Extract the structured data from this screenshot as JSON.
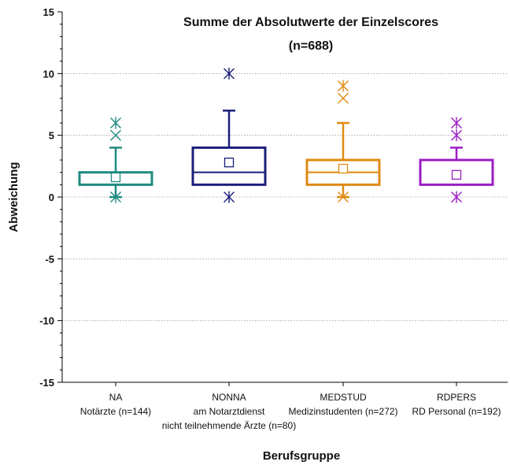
{
  "chart_data": {
    "type": "boxplot",
    "title": "Summe der Absolutwerte der Einzelscores",
    "subtitle": "(n=688)",
    "xlabel": "Berufsgruppe",
    "ylabel": "Abweichung",
    "ylim": [
      -15,
      15
    ],
    "yticks": [
      "-15",
      "-10",
      "-5",
      "0",
      "5",
      "10",
      "15"
    ],
    "grid": "horizontal-dotted",
    "groups": [
      {
        "code": "NA",
        "labels": [
          "NA",
          "Notärzte (n=144)"
        ],
        "color": "#1f8a80",
        "whisker_low": 0,
        "q1": 1,
        "median": 1,
        "q3": 2,
        "whisker_high": 4,
        "mean": 1.6,
        "outliers": [
          {
            "v": 5,
            "m": "x"
          },
          {
            "v": 6,
            "m": "star"
          },
          {
            "v": 0,
            "m": "star"
          }
        ]
      },
      {
        "code": "NONNA",
        "labels": [
          "NONNA",
          "am Notarztdienst",
          "nicht teilnehmende Ärzte (n=80)"
        ],
        "color": "#1a1f7a",
        "whisker_low": 1,
        "q1": 1,
        "median": 2,
        "q3": 4,
        "whisker_high": 7,
        "mean": 2.8,
        "outliers": [
          {
            "v": 10,
            "m": "star"
          },
          {
            "v": 0,
            "m": "star"
          }
        ]
      },
      {
        "code": "MEDSTUD",
        "labels": [
          "MEDSTUD",
          "Medizinstudenten (n=272)"
        ],
        "color": "#e08a10",
        "whisker_low": 0,
        "q1": 1,
        "median": 2,
        "q3": 3,
        "whisker_high": 6,
        "mean": 2.3,
        "outliers": [
          {
            "v": 8,
            "m": "x"
          },
          {
            "v": 9,
            "m": "star"
          },
          {
            "v": 0,
            "m": "x"
          }
        ]
      },
      {
        "code": "RDPERS",
        "labels": [
          "RDPERS",
          "RD Personal (n=192)"
        ],
        "color": "#9a1cc4",
        "whisker_low": 1,
        "q1": 1,
        "median": 1,
        "q3": 3,
        "whisker_high": 4,
        "mean": 1.8,
        "outliers": [
          {
            "v": 5,
            "m": "star"
          },
          {
            "v": 6,
            "m": "star"
          },
          {
            "v": 0,
            "m": "star"
          }
        ]
      }
    ]
  }
}
